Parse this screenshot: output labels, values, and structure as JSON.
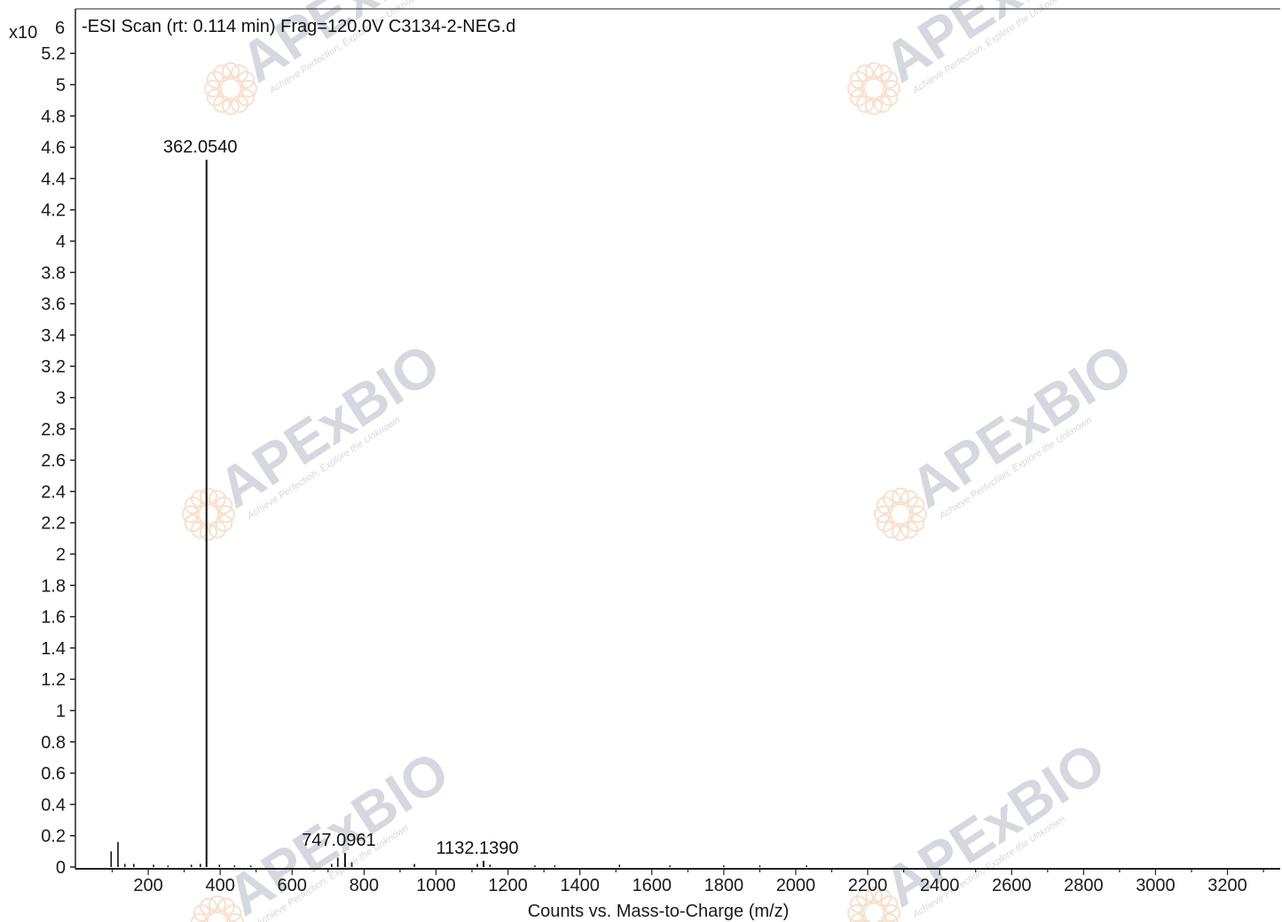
{
  "chart_data": {
    "type": "bar",
    "title": "-ESI Scan (rt: 0.114 min) Frag=120.0V C3134-2-NEG.d",
    "xlabel": "Counts vs. Mass-to-Charge (m/z)",
    "ylabel": "",
    "y_multiplier": "x10",
    "y_exponent": "6",
    "xlim": [
      55,
      3403
    ],
    "ylim": [
      0,
      5.34
    ],
    "x_ticks": [
      200,
      400,
      600,
      800,
      1000,
      1200,
      1400,
      1600,
      1800,
      2000,
      2200,
      2400,
      2600,
      2800,
      3000,
      3200
    ],
    "y_ticks": [
      0,
      0.2,
      0.4,
      0.6,
      0.8,
      1,
      1.2,
      1.4,
      1.6,
      1.8,
      2,
      2.2,
      2.4,
      2.6,
      2.8,
      3,
      3.2,
      3.4,
      3.6,
      3.8,
      4,
      4.2,
      4.4,
      4.6,
      4.8,
      5,
      5.2
    ],
    "y_tick_labels": [
      "0",
      "0.2",
      "0.4",
      "0.6",
      "0.8",
      "1",
      "1.2",
      "1.4",
      "1.6",
      "1.8",
      "2",
      "2.2",
      "2.4",
      "2.6",
      "2.8",
      "3",
      "3.2",
      "3.4",
      "3.6",
      "3.8",
      "4",
      "4.2",
      "4.4",
      "4.6",
      "4.8",
      "5",
      "5.2"
    ],
    "peaks": [
      {
        "mz": 362.054,
        "intensity": 4.52,
        "label": "362.0540"
      },
      {
        "mz": 747.0961,
        "intensity": 0.09,
        "label": "747.0961"
      },
      {
        "mz": 1132.139,
        "intensity": 0.04,
        "label": "1132.1390"
      }
    ],
    "minor_peaks": [
      {
        "mz": 97,
        "intensity": 0.1
      },
      {
        "mz": 116,
        "intensity": 0.16
      },
      {
        "mz": 135,
        "intensity": 0.02
      },
      {
        "mz": 160,
        "intensity": 0.02
      },
      {
        "mz": 215,
        "intensity": 0.015
      },
      {
        "mz": 255,
        "intensity": 0.01
      },
      {
        "mz": 320,
        "intensity": 0.015
      },
      {
        "mz": 345,
        "intensity": 0.02
      },
      {
        "mz": 398,
        "intensity": 0.015
      },
      {
        "mz": 440,
        "intensity": 0.01
      },
      {
        "mz": 485,
        "intensity": 0.01
      },
      {
        "mz": 710,
        "intensity": 0.02
      },
      {
        "mz": 727,
        "intensity": 0.06
      },
      {
        "mz": 766,
        "intensity": 0.03
      },
      {
        "mz": 940,
        "intensity": 0.02
      },
      {
        "mz": 1115,
        "intensity": 0.02
      },
      {
        "mz": 1150,
        "intensity": 0.015
      },
      {
        "mz": 1275,
        "intensity": 0.01
      },
      {
        "mz": 1330,
        "intensity": 0.01
      },
      {
        "mz": 1510,
        "intensity": 0.015
      },
      {
        "mz": 1650,
        "intensity": 0.01
      },
      {
        "mz": 1800,
        "intensity": 0.01
      },
      {
        "mz": 1900,
        "intensity": 0.01
      },
      {
        "mz": 2030,
        "intensity": 0.01
      }
    ],
    "grid": false,
    "legend": "none"
  },
  "watermark": {
    "brand": "APExBIO",
    "tagline": "Achieve Perfection, Explore the Unknown",
    "brand_color": "#c9ccd6",
    "accent_color": "#f0c9a8"
  },
  "colors": {
    "axis": "#222222",
    "bars": "#111111",
    "background": "#ffffff"
  }
}
